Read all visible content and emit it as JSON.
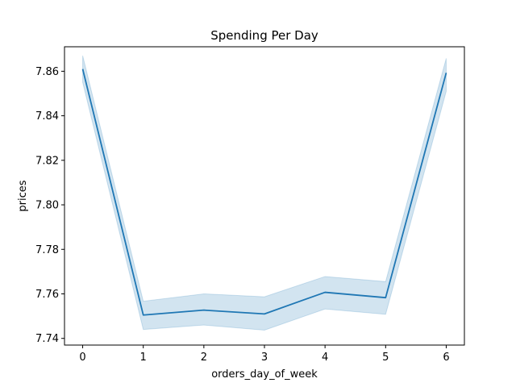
{
  "chart_data": {
    "type": "line",
    "title": "Spending Per Day",
    "xlabel": "orders_day_of_week",
    "ylabel": "prices",
    "x": [
      0,
      1,
      2,
      3,
      4,
      5,
      6
    ],
    "xlim": [
      -0.3,
      6.3
    ],
    "ylim": [
      7.737,
      7.871
    ],
    "xticks": [
      0,
      1,
      2,
      3,
      4,
      5,
      6
    ],
    "yticks": [
      7.74,
      7.76,
      7.78,
      7.8,
      7.82,
      7.84,
      7.86
    ],
    "grid": false,
    "series": [
      {
        "values": [
          7.861,
          7.7505,
          7.7527,
          7.751,
          7.7607,
          7.7583,
          7.8593
        ],
        "ci_lower": [
          7.855,
          7.744,
          7.746,
          7.7437,
          7.7532,
          7.7508,
          7.851
        ],
        "ci_upper": [
          7.867,
          7.7567,
          7.76,
          7.7587,
          7.7678,
          7.7655,
          7.8658
        ],
        "color": "#1f77b4",
        "band_color": "#1f77b4"
      }
    ]
  }
}
